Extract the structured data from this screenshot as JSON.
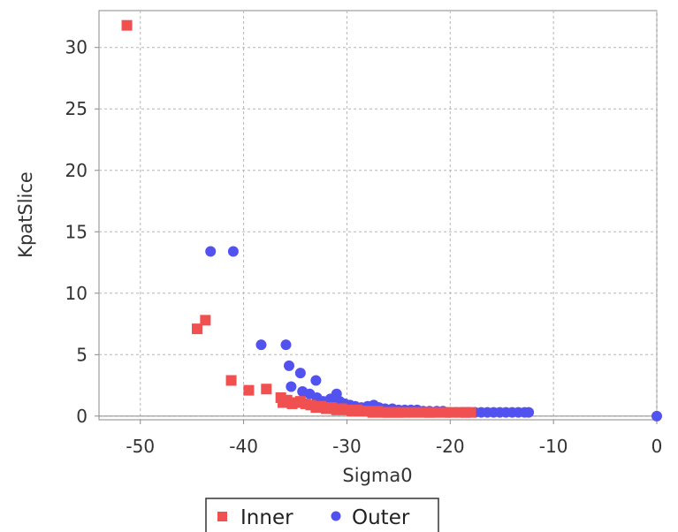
{
  "chart_data": {
    "type": "scatter",
    "xlabel": "Sigma0",
    "ylabel": "KpatSlice",
    "xlim": [
      -54,
      0
    ],
    "ylim": [
      -0.3,
      33
    ],
    "x_ticks": [
      -50,
      -40,
      -30,
      -20,
      -10,
      0
    ],
    "y_ticks": [
      0,
      5,
      10,
      15,
      20,
      25,
      30
    ],
    "grid": true,
    "legend_position": "bottom",
    "series": [
      {
        "name": "Inner",
        "marker": "square",
        "color": "#f05050",
        "points": [
          [
            -51.3,
            31.8
          ],
          [
            -44.5,
            7.1
          ],
          [
            -43.7,
            7.8
          ],
          [
            -41.2,
            2.9
          ],
          [
            -39.5,
            2.1
          ],
          [
            -37.8,
            2.2
          ],
          [
            -36.4,
            1.5
          ],
          [
            -36.2,
            1.1
          ],
          [
            -35.8,
            1.3
          ],
          [
            -35.3,
            1.0
          ],
          [
            -35.0,
            1.1
          ],
          [
            -34.5,
            1.2
          ],
          [
            -34.0,
            1.0
          ],
          [
            -33.5,
            0.9
          ],
          [
            -33.0,
            0.7
          ],
          [
            -32.5,
            0.8
          ],
          [
            -32.0,
            0.6
          ],
          [
            -31.5,
            0.7
          ],
          [
            -31.0,
            0.5
          ],
          [
            -30.5,
            0.6
          ],
          [
            -30.0,
            0.5
          ],
          [
            -29.5,
            0.4
          ],
          [
            -29.0,
            0.5
          ],
          [
            -28.5,
            0.4
          ],
          [
            -28.0,
            0.4
          ],
          [
            -27.5,
            0.3
          ],
          [
            -27.0,
            0.4
          ],
          [
            -26.5,
            0.3
          ],
          [
            -26.0,
            0.3
          ],
          [
            -25.5,
            0.3
          ],
          [
            -25.0,
            0.3
          ],
          [
            -24.5,
            0.3
          ],
          [
            -23.5,
            0.3
          ],
          [
            -22.5,
            0.3
          ],
          [
            -22.0,
            0.3
          ],
          [
            -21.5,
            0.3
          ],
          [
            -20.5,
            0.3
          ],
          [
            -20.0,
            0.3
          ],
          [
            -19.0,
            0.3
          ],
          [
            -18.5,
            0.3
          ],
          [
            -18.0,
            0.3
          ]
        ]
      },
      {
        "name": "Outer",
        "marker": "circle",
        "color": "#5252f0",
        "points": [
          [
            -43.2,
            13.4
          ],
          [
            -41.0,
            13.4
          ],
          [
            -38.3,
            5.8
          ],
          [
            -35.9,
            5.8
          ],
          [
            -35.6,
            4.1
          ],
          [
            -35.4,
            2.4
          ],
          [
            -34.5,
            3.5
          ],
          [
            -34.3,
            2.0
          ],
          [
            -33.6,
            1.8
          ],
          [
            -33.0,
            2.9
          ],
          [
            -32.9,
            1.5
          ],
          [
            -32.3,
            1.2
          ],
          [
            -31.6,
            1.4
          ],
          [
            -31.0,
            1.8
          ],
          [
            -30.7,
            1.2
          ],
          [
            -30.2,
            1.0
          ],
          [
            -29.7,
            0.9
          ],
          [
            -29.2,
            0.8
          ],
          [
            -28.6,
            0.7
          ],
          [
            -28.0,
            0.8
          ],
          [
            -27.4,
            0.9
          ],
          [
            -26.9,
            0.7
          ],
          [
            -26.3,
            0.6
          ],
          [
            -25.6,
            0.6
          ],
          [
            -25.0,
            0.5
          ],
          [
            -24.4,
            0.5
          ],
          [
            -23.8,
            0.5
          ],
          [
            -23.2,
            0.5
          ],
          [
            -22.6,
            0.4
          ],
          [
            -22.0,
            0.4
          ],
          [
            -21.3,
            0.4
          ],
          [
            -20.7,
            0.4
          ],
          [
            -20.0,
            0.3
          ],
          [
            -19.4,
            0.3
          ],
          [
            -18.8,
            0.3
          ],
          [
            -18.2,
            0.3
          ],
          [
            -17.6,
            0.3
          ],
          [
            -17.0,
            0.3
          ],
          [
            -16.4,
            0.3
          ],
          [
            -15.8,
            0.3
          ],
          [
            -15.2,
            0.3
          ],
          [
            -14.6,
            0.3
          ],
          [
            -14.0,
            0.3
          ],
          [
            -13.4,
            0.3
          ],
          [
            -12.8,
            0.3
          ],
          [
            -12.4,
            0.3
          ],
          [
            0.0,
            0.0
          ]
        ]
      }
    ]
  }
}
